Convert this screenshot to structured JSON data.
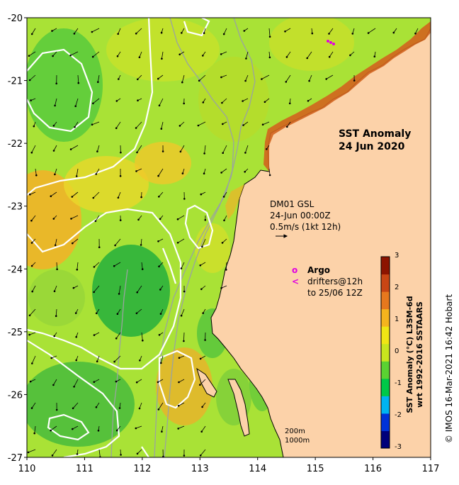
{
  "map": {
    "title_line1": "SST Anomaly",
    "title_line2": "24 Jun 2020",
    "x_ticks": [
      "110",
      "111",
      "112",
      "113",
      "114",
      "115",
      "116",
      "117"
    ],
    "y_ticks": [
      "-20",
      "-21",
      "-22",
      "-23",
      "-24",
      "-25",
      "-26",
      "-27"
    ],
    "lon_range": [
      110,
      117
    ],
    "lat_range": [
      -27,
      -20
    ],
    "land_color": "#fcd2a9",
    "ocean_base_color": "#a9e236",
    "velocity_legend": {
      "line1": "DM01 GSL",
      "line2": "24-Jun 00:00Z",
      "line3": "0.5m/s (1kt 12h)"
    },
    "argo_legend": {
      "argo_symbol": "o",
      "argo_label": "Argo",
      "drifter_symbol": "<",
      "drifter_line1": "drifters@12h",
      "drifter_line2": "to 25/06 12Z",
      "symbol_color": "#e000e0"
    },
    "contours": {
      "line1": "200m",
      "line2": "1000m"
    },
    "colorbar": {
      "ticks": [
        "3",
        "2",
        "1",
        "0",
        "-1",
        "-2",
        "-3"
      ],
      "title_line1": "SST Anomaly (°C) L3SM-6d",
      "title_line2": "wrt 1992-2016 SSTAARS",
      "colors": [
        "#00007a",
        "#0032d8",
        "#00b4f0",
        "#00c848",
        "#5ad232",
        "#c8e61e",
        "#f0e614",
        "#f5b41e",
        "#e6781e",
        "#c84614",
        "#8c1400"
      ]
    },
    "credit": "© IMOS 16-Mar-2021 16:42 Hobart"
  }
}
